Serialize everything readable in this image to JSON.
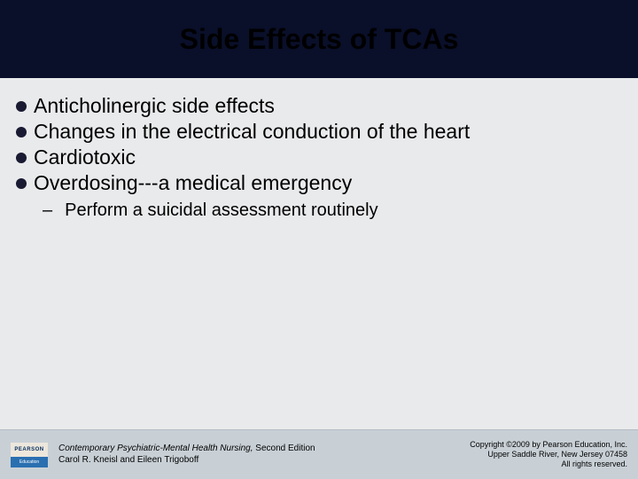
{
  "colors": {
    "bg": "#e9eaec",
    "title_band_bg": "#0a0f2a",
    "title_text": "#000000",
    "body_text": "#000000",
    "bullet": "#1a1a33",
    "footer_bg": "#c8d0d6",
    "footer_rule": "#b4bcc4",
    "logo_top_bg": "#ede7dc",
    "logo_top_text": "#002b5c",
    "logo_bot_bg": "#2a6fb0",
    "logo_bot_text": "#ffffff"
  },
  "title": "Side Effects of TCAs",
  "bullets": [
    "Anticholinergic side effects",
    "Changes in the electrical conduction of the heart",
    "Cardiotoxic",
    "Overdosing---a medical emergency"
  ],
  "sub_bullet": "Perform a suicidal assessment routinely",
  "footer": {
    "logo_top": "PEARSON",
    "logo_bot": "Education",
    "book_title": "Contemporary Psychiatric-Mental Health Nursing,",
    "book_edition": " Second Edition",
    "authors": "Carol R. Kneisl and Eileen Trigoboff",
    "copyright_line1": "Copyright ©2009 by Pearson Education, Inc.",
    "copyright_line2": "Upper Saddle River, New Jersey 07458",
    "copyright_line3": "All rights reserved."
  }
}
